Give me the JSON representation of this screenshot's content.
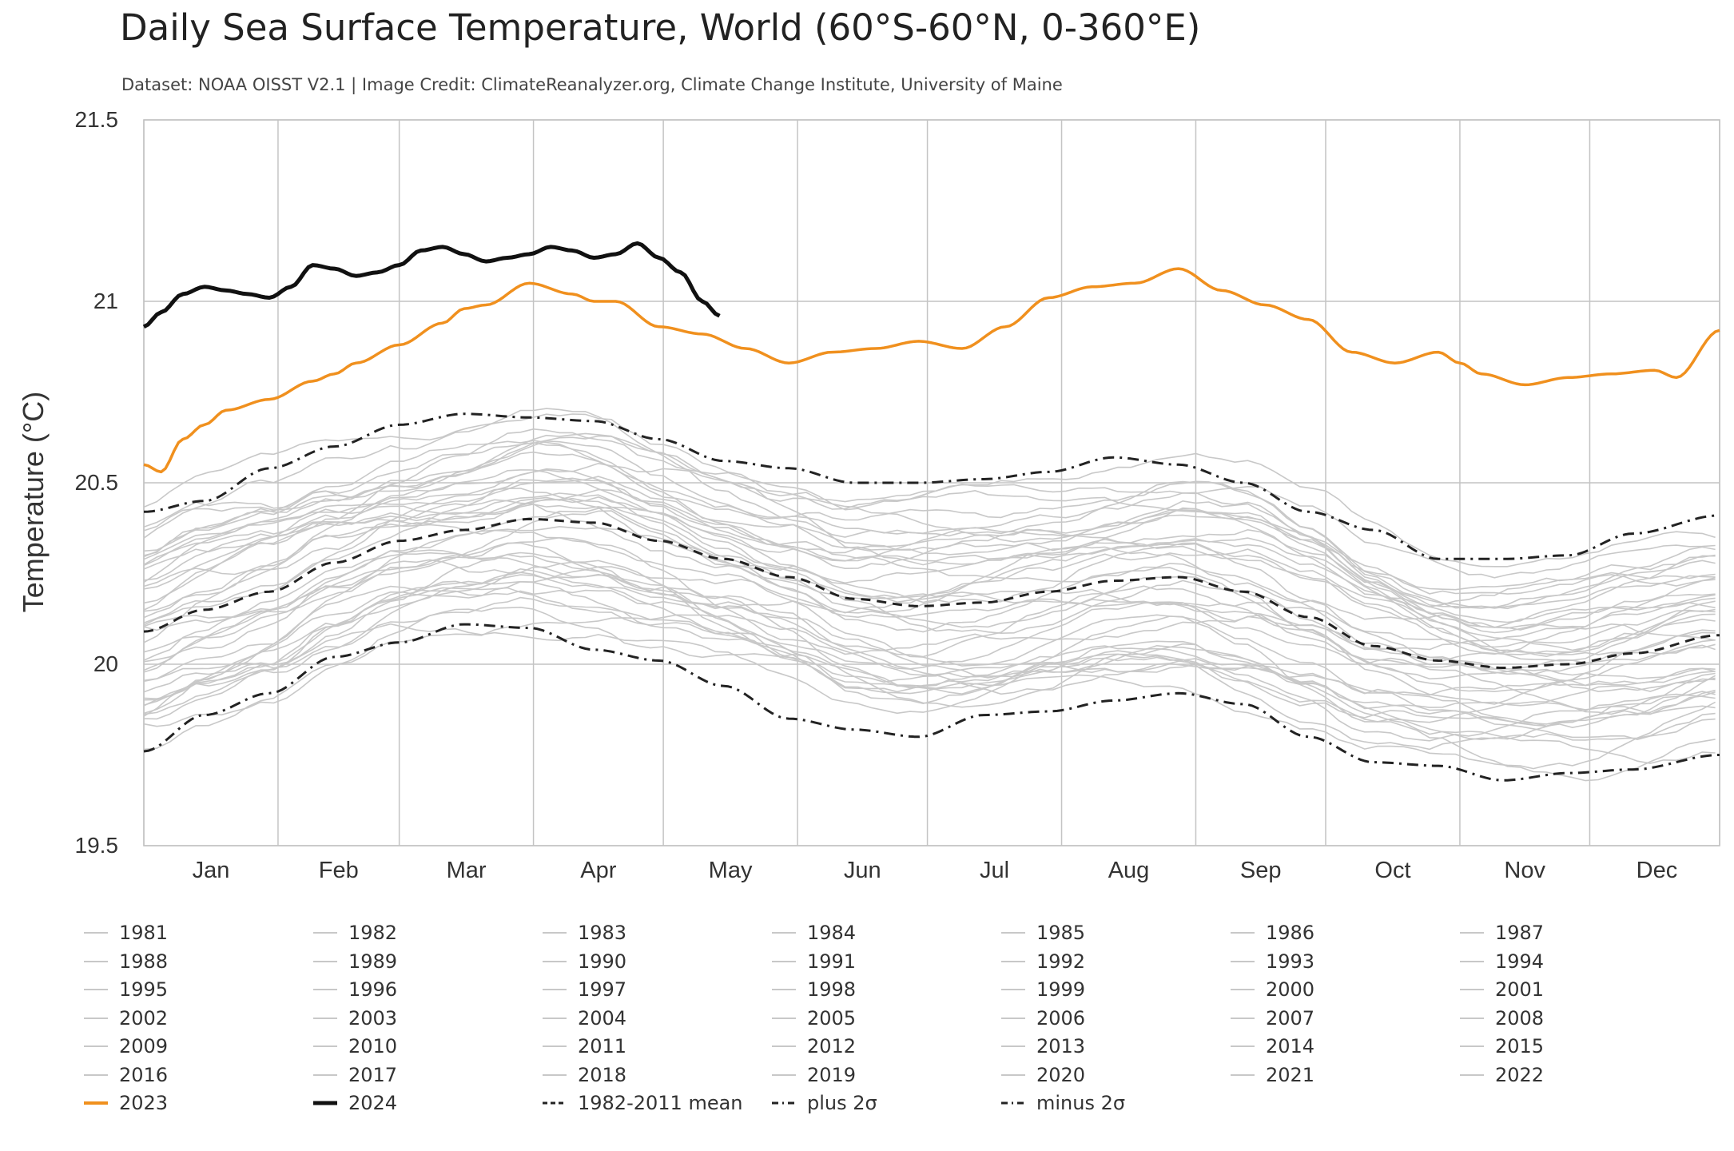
{
  "chart_data": {
    "type": "line",
    "title": "Daily Sea Surface Temperature, World (60°S-60°N, 0-360°E)",
    "subtitle": "Dataset: NOAA OISST V2.1 | Image Credit: ClimateReanalyzer.org, Climate Change Institute, University of Maine",
    "ylabel": "Temperature (°C)",
    "xlabel": "",
    "ylim": [
      19.5,
      21.5
    ],
    "yticks": [
      "21.5",
      "21",
      "20.5",
      "20",
      "19.5"
    ],
    "ytick_values": [
      21.5,
      21,
      20.5,
      20,
      19.5
    ],
    "categories": [
      "Jan",
      "Feb",
      "Mar",
      "Apr",
      "May",
      "Jun",
      "Jul",
      "Aug",
      "Sep",
      "Oct",
      "Nov",
      "Dec"
    ],
    "grid": true,
    "legend_position": "bottom",
    "colors": {
      "historical": "#c8c8c8",
      "y2023": "#f0901e",
      "y2024": "#111111",
      "reference": "#222222"
    },
    "series": [
      {
        "name": "2023",
        "color": "#f0901e",
        "style": "solid",
        "x": [
          1,
          5,
          10,
          15,
          20,
          30,
          40,
          45,
          50,
          60,
          70,
          75,
          80,
          90,
          100,
          105,
          110,
          120,
          130,
          140,
          150,
          160,
          170,
          180,
          190,
          200,
          210,
          220,
          230,
          240,
          250,
          260,
          270,
          280,
          290,
          300,
          305,
          310,
          320,
          330,
          340,
          350,
          355,
          365
        ],
        "y": [
          20.55,
          20.53,
          20.62,
          20.66,
          20.7,
          20.73,
          20.78,
          20.8,
          20.83,
          20.88,
          20.94,
          20.98,
          20.99,
          21.05,
          21.02,
          21.0,
          21.0,
          20.93,
          20.91,
          20.87,
          20.83,
          20.86,
          20.87,
          20.89,
          20.87,
          20.93,
          21.01,
          21.04,
          21.05,
          21.09,
          21.03,
          20.99,
          20.95,
          20.86,
          20.83,
          20.86,
          20.83,
          20.8,
          20.77,
          20.79,
          20.8,
          20.81,
          20.79,
          20.92
        ]
      },
      {
        "name": "2024",
        "color": "#111111",
        "style": "solid",
        "x": [
          1,
          5,
          10,
          15,
          20,
          25,
          30,
          35,
          40,
          45,
          50,
          55,
          60,
          65,
          70,
          75,
          80,
          85,
          90,
          95,
          100,
          105,
          110,
          115,
          120,
          125,
          130,
          134
        ],
        "y": [
          20.93,
          20.97,
          21.02,
          21.04,
          21.03,
          21.02,
          21.01,
          21.04,
          21.1,
          21.09,
          21.07,
          21.08,
          21.1,
          21.14,
          21.15,
          21.13,
          21.11,
          21.12,
          21.13,
          21.15,
          21.14,
          21.12,
          21.13,
          21.16,
          21.12,
          21.08,
          21.0,
          20.96
        ]
      },
      {
        "name": "1982-2011 mean",
        "color": "#222222",
        "style": "dashed",
        "x": [
          1,
          15,
          30,
          45,
          60,
          75,
          90,
          105,
          120,
          135,
          150,
          165,
          180,
          195,
          210,
          225,
          240,
          255,
          270,
          285,
          300,
          315,
          330,
          345,
          365
        ],
        "y": [
          20.09,
          20.15,
          20.2,
          20.28,
          20.34,
          20.37,
          20.4,
          20.39,
          20.34,
          20.29,
          20.24,
          20.18,
          20.16,
          20.17,
          20.2,
          20.23,
          20.24,
          20.2,
          20.13,
          20.05,
          20.01,
          19.99,
          20.0,
          20.03,
          20.08
        ]
      },
      {
        "name": "plus 2σ",
        "color": "#222222",
        "style": "dash-dot",
        "x": [
          1,
          15,
          30,
          45,
          60,
          75,
          90,
          105,
          120,
          135,
          150,
          165,
          180,
          195,
          210,
          225,
          240,
          255,
          270,
          285,
          300,
          315,
          330,
          345,
          365
        ],
        "y": [
          20.42,
          20.45,
          20.54,
          20.6,
          20.66,
          20.69,
          20.68,
          20.67,
          20.62,
          20.56,
          20.54,
          20.5,
          20.5,
          20.51,
          20.53,
          20.57,
          20.55,
          20.5,
          20.42,
          20.37,
          20.29,
          20.29,
          20.3,
          20.36,
          20.41
        ]
      },
      {
        "name": "minus 2σ",
        "color": "#222222",
        "style": "dash-dot",
        "x": [
          1,
          15,
          30,
          45,
          60,
          75,
          90,
          105,
          120,
          135,
          150,
          165,
          180,
          195,
          210,
          225,
          240,
          255,
          270,
          285,
          300,
          315,
          330,
          345,
          365
        ],
        "y": [
          19.76,
          19.86,
          19.92,
          20.02,
          20.06,
          20.11,
          20.1,
          20.04,
          20.01,
          19.94,
          19.85,
          19.82,
          19.8,
          19.86,
          19.87,
          19.9,
          19.92,
          19.89,
          19.8,
          19.73,
          19.72,
          19.68,
          19.7,
          19.71,
          19.75
        ]
      }
    ]
  },
  "legend": [
    {
      "label": "1981",
      "kind": "hist"
    },
    {
      "label": "1982",
      "kind": "hist"
    },
    {
      "label": "1983",
      "kind": "hist"
    },
    {
      "label": "1984",
      "kind": "hist"
    },
    {
      "label": "1985",
      "kind": "hist"
    },
    {
      "label": "1986",
      "kind": "hist"
    },
    {
      "label": "1987",
      "kind": "hist"
    },
    {
      "label": "1988",
      "kind": "hist"
    },
    {
      "label": "1989",
      "kind": "hist"
    },
    {
      "label": "1990",
      "kind": "hist"
    },
    {
      "label": "1991",
      "kind": "hist"
    },
    {
      "label": "1992",
      "kind": "hist"
    },
    {
      "label": "1993",
      "kind": "hist"
    },
    {
      "label": "1994",
      "kind": "hist"
    },
    {
      "label": "1995",
      "kind": "hist"
    },
    {
      "label": "1996",
      "kind": "hist"
    },
    {
      "label": "1997",
      "kind": "hist"
    },
    {
      "label": "1998",
      "kind": "hist"
    },
    {
      "label": "1999",
      "kind": "hist"
    },
    {
      "label": "2000",
      "kind": "hist"
    },
    {
      "label": "2001",
      "kind": "hist"
    },
    {
      "label": "2002",
      "kind": "hist"
    },
    {
      "label": "2003",
      "kind": "hist"
    },
    {
      "label": "2004",
      "kind": "hist"
    },
    {
      "label": "2005",
      "kind": "hist"
    },
    {
      "label": "2006",
      "kind": "hist"
    },
    {
      "label": "2007",
      "kind": "hist"
    },
    {
      "label": "2008",
      "kind": "hist"
    },
    {
      "label": "2009",
      "kind": "hist"
    },
    {
      "label": "2010",
      "kind": "hist"
    },
    {
      "label": "2011",
      "kind": "hist"
    },
    {
      "label": "2012",
      "kind": "hist"
    },
    {
      "label": "2013",
      "kind": "hist"
    },
    {
      "label": "2014",
      "kind": "hist"
    },
    {
      "label": "2015",
      "kind": "hist"
    },
    {
      "label": "2016",
      "kind": "hist"
    },
    {
      "label": "2017",
      "kind": "hist"
    },
    {
      "label": "2018",
      "kind": "hist"
    },
    {
      "label": "2019",
      "kind": "hist"
    },
    {
      "label": "2020",
      "kind": "hist"
    },
    {
      "label": "2021",
      "kind": "hist"
    },
    {
      "label": "2022",
      "kind": "hist"
    },
    {
      "label": "2023",
      "kind": "y2023"
    },
    {
      "label": "2024",
      "kind": "y2024"
    },
    {
      "label": "1982-2011 mean",
      "kind": "mean"
    },
    {
      "label": "plus 2σ",
      "kind": "dashdot"
    },
    {
      "label": "minus 2σ",
      "kind": "dashdot"
    }
  ]
}
